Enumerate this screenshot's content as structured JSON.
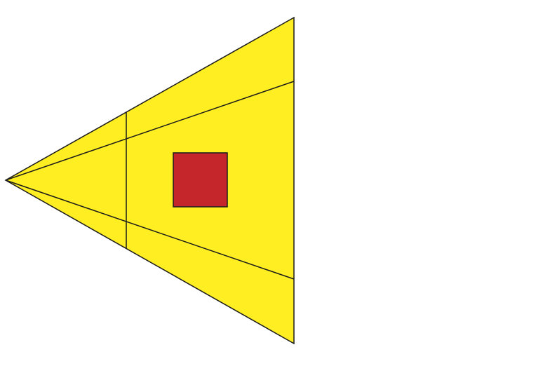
{
  "diagram": {
    "colors": {
      "background": "#ffffff",
      "cone_fill": "#ffee22",
      "square_fill": "#c4262c",
      "stroke": "#1a1a1a"
    },
    "shapes": [
      "triangle-cone",
      "inner-ray-upper",
      "inner-ray-lower",
      "vertical-cross-line",
      "red-square"
    ]
  }
}
